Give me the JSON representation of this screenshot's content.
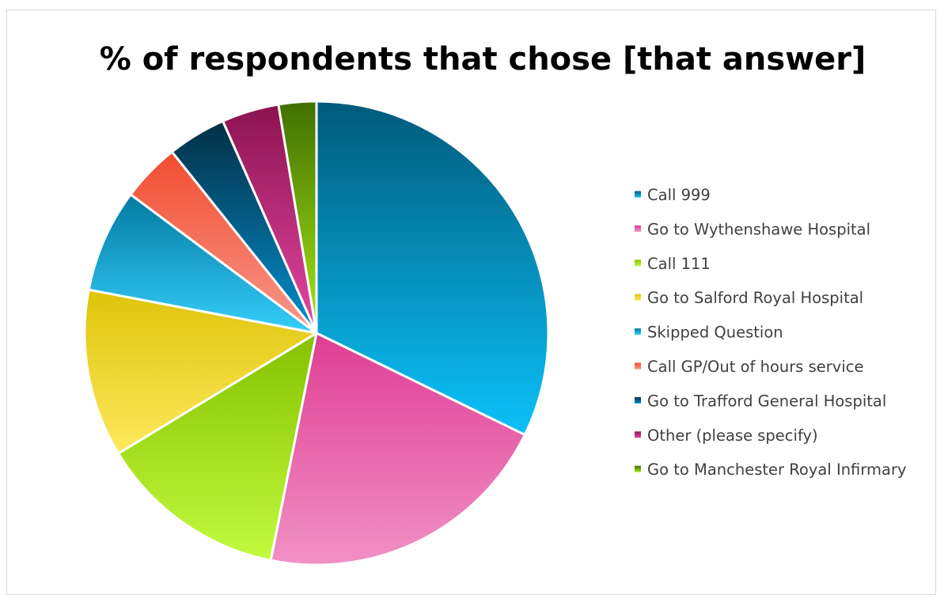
{
  "chart_data": {
    "type": "pie",
    "title": "% of respondents that chose [that answer]",
    "legend_position": "right",
    "series": [
      {
        "labels": [
          "Call 999",
          "Go to Wythenshawe Hospital",
          "Call 111",
          "Go to Salford Royal Hospital",
          "Skipped Question",
          "Call GP/Out of hours service",
          "Go to Trafford General Hospital",
          "Other (please specify)",
          "Go to Manchester Royal Infirmary"
        ],
        "values": [
          33.1,
          21.5,
          13.5,
          12.0,
          7.4,
          4.2,
          4.2,
          4.1,
          2.7
        ],
        "colors": [
          [
            "#005a7a",
            "#0cc2fa"
          ],
          [
            "#df3d93",
            "#f191c5"
          ],
          [
            "#84c100",
            "#c3fb3e"
          ],
          [
            "#dfc40a",
            "#fde95d"
          ],
          [
            "#037aa2",
            "#35cefb"
          ],
          [
            "#f24d2f",
            "#f7988b"
          ],
          [
            "#022f45",
            "#068fce"
          ],
          [
            "#8c1351",
            "#e447a2"
          ],
          [
            "#426f00",
            "#a6e81a"
          ]
        ]
      }
    ]
  }
}
